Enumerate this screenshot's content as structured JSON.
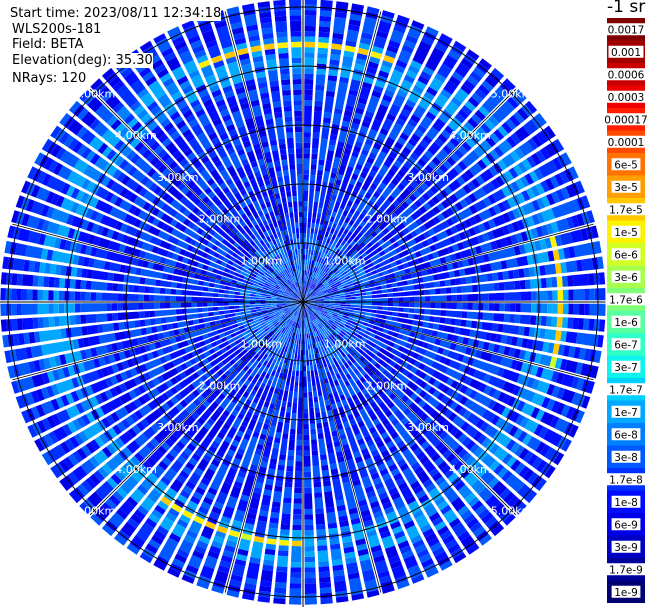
{
  "info": {
    "start_time": "Start time: 2023/08/11 12:34:18",
    "instrument": "WLS200s-181",
    "field": "Field: BETA",
    "elevation": "Elevation(deg): 35.30",
    "nrays": "NRays: 120"
  },
  "colorbar": {
    "title": "-1 sr",
    "labels": [
      "0.0017",
      "0.001",
      "0.0006",
      "0.0003",
      "0.00017",
      "0.0001",
      "6e-5",
      "3e-5",
      "1.7e-5",
      "1e-5",
      "6e-6",
      "3e-6",
      "1.7e-6",
      "1e-6",
      "6e-7",
      "3e-7",
      "1.7e-7",
      "1e-7",
      "6e-8",
      "3e-8",
      "1.7e-8",
      "1e-8",
      "6e-9",
      "3e-9",
      "1.7e-9",
      "1e-9"
    ],
    "colors": [
      "#7f0000",
      "#a30000",
      "#c80000",
      "#ee0000",
      "#ff1e00",
      "#ff4a00",
      "#ff7400",
      "#ff9e00",
      "#ffc800",
      "#fff200",
      "#d2ff25",
      "#a9ff4e",
      "#81ff76",
      "#59ffa0",
      "#33ffc9",
      "#0cf4ec",
      "#00d0ff",
      "#00a8ff",
      "#0080ff",
      "#0058ff",
      "#0030ff",
      "#000cff",
      "#0000e8",
      "#0000c2",
      "#00009b",
      "#000074"
    ]
  },
  "chart_data": {
    "type": "heatmap",
    "projection": "polar (PPI scan)",
    "field": "BETA",
    "nrays": 120,
    "range_rings_km": [
      1.0,
      2.0,
      3.0,
      4.0,
      5.0
    ],
    "range_labels": [
      "1.00km",
      "2.00km",
      "3.00km",
      "4.00km",
      "5.00km"
    ],
    "max_range_km": 5.1,
    "radial_spokes": 12,
    "background_beta_range": [
      6e-09,
      6e-08
    ],
    "features": [
      {
        "desc": "ring of elevated backscatter",
        "range_km": 4.2,
        "beta": 1e-07
      },
      {
        "desc": "strong return arc, east",
        "azimuth_deg": [
          75,
          105
        ],
        "range_km": 4.35,
        "beta": 1.7e-05
      },
      {
        "desc": "strong return arc, north",
        "azimuth_deg": [
          335,
          20
        ],
        "range_km": 4.35,
        "beta": 1.7e-05
      },
      {
        "desc": "strong return arc, south",
        "azimuth_deg": [
          180,
          215
        ],
        "range_km": 4.1,
        "beta": 1.7e-05
      }
    ]
  }
}
